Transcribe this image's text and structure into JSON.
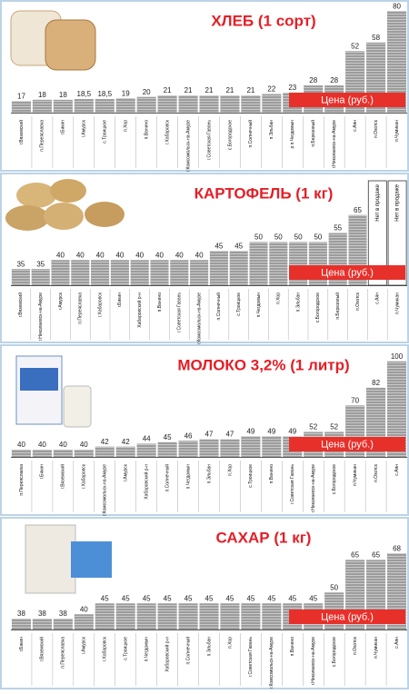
{
  "chart_data": [
    {
      "type": "bar",
      "title": "ХЛЕБ (1 сорт)",
      "legend": "Цена (руб.)",
      "legend_color": "#e8302a",
      "color": "#9c9c9c",
      "categories": [
        "г.Вяземский",
        "п.Переяславка",
        "г.Бикин",
        "г.Амурск",
        "с.Троицкое",
        "п.Хор",
        "п.Ванино",
        "г.Хабаровск",
        "г.Комсомольск-на-Амуре",
        "г.Советская Гавань",
        "с.Богородское",
        "п.Солнечный",
        "п.Эльбан",
        "р.п.Чегдомын",
        "п.Березовый",
        "г.Николаевск-на-Амуре",
        "с.Аян",
        "п.Охотск",
        "п.Чумикан"
      ],
      "values": [
        17,
        18,
        18,
        18.5,
        18.5,
        19,
        20,
        21,
        21,
        21,
        21,
        21,
        22,
        23,
        28,
        28,
        52,
        58,
        80
      ],
      "value_labels": [
        "17",
        "18",
        "18",
        "18,5",
        "18,5",
        "19",
        "20",
        "21",
        "21",
        "21",
        "21",
        "21",
        "22",
        "23",
        "28",
        "28",
        "52",
        "58",
        "80"
      ],
      "ylim": [
        9,
        82
      ]
    },
    {
      "type": "bar",
      "title": "КАРТОФЕЛЬ (1 кг)",
      "legend": "Цена (руб.)",
      "legend_color": "#e8302a",
      "color": "#9c9c9c",
      "unavailable_label": "Нет в продаже",
      "categories": [
        "г.Вяземский",
        "г.Николаевск-на-Амуре",
        "г.Амурск",
        "п.Переяславка",
        "г.Хабаровск",
        "г.Бикин",
        "Хабаровский р-н",
        "п.Ванино",
        "г.Советская Гавань",
        "г.Комсомольск-на-Амуре",
        "п.Солнечный",
        "с.Троицкое",
        "п.Чегдомын",
        "п.Хор",
        "п.Эльбан",
        "с.Богородское",
        "п.Березовый",
        "п.Охотск",
        "с.Аян",
        "п.Чумикан"
      ],
      "values": [
        35,
        35,
        40,
        40,
        40,
        40,
        40,
        40,
        40,
        40,
        45,
        45,
        50,
        50,
        50,
        50,
        55,
        65,
        null,
        null
      ],
      "ylim": [
        26,
        84
      ]
    },
    {
      "type": "bar",
      "title": "МОЛОКО 3,2% (1 литр)",
      "legend": "Цена (руб.)",
      "legend_color": "#e8302a",
      "color": "#9c9c9c",
      "categories": [
        "п.Переяславка",
        "г.Бикин",
        "г.Вяземский",
        "г.Хабаровск",
        "г.Комсомольск-на-Амуре",
        "г.Амурск",
        "Хабаровский р-н",
        "п.Солнечный",
        "п.Чегдомын",
        "п.Эльбан",
        "п.Хор",
        "с.Троицкое",
        "п.Ванино",
        "г.Советская Гавань",
        "г.Николаевск-на-Амуре",
        "с.Богородское",
        "п.Чумикан",
        "п.Охотск",
        "с.Аян"
      ],
      "values": [
        40,
        40,
        40,
        40,
        42,
        42,
        44,
        45,
        46,
        47,
        47,
        49,
        49,
        49,
        52,
        52,
        70,
        82,
        100
      ],
      "ylim": [
        35,
        106
      ]
    },
    {
      "type": "bar",
      "title": "САХАР (1 кг)",
      "legend": "Цена (руб.)",
      "legend_color": "#e8302a",
      "color": "#9c9c9c",
      "categories": [
        "г.Бикин",
        "г.Вяземский",
        "п.Переяславка",
        "г.Амурск",
        "г.Хабаровск",
        "с.Троицкое",
        "п.Чегдомын",
        "Хабаровский р-н",
        "п.Солнечный",
        "п.Эльбан",
        "п.Хор",
        "г.Советская Гавань",
        "г.Комсомольск-на-Амуре",
        "п.Ванино",
        "г.Николаевск-на-Амуре",
        "с.Богородское",
        "п.Охотск",
        "п.Чумикан",
        "с.Аян"
      ],
      "values": [
        38,
        38,
        38,
        40,
        45,
        45,
        45,
        45,
        45,
        45,
        45,
        45,
        45,
        45,
        45,
        50,
        65,
        65,
        68
      ],
      "ylim": [
        33,
        81
      ]
    }
  ]
}
